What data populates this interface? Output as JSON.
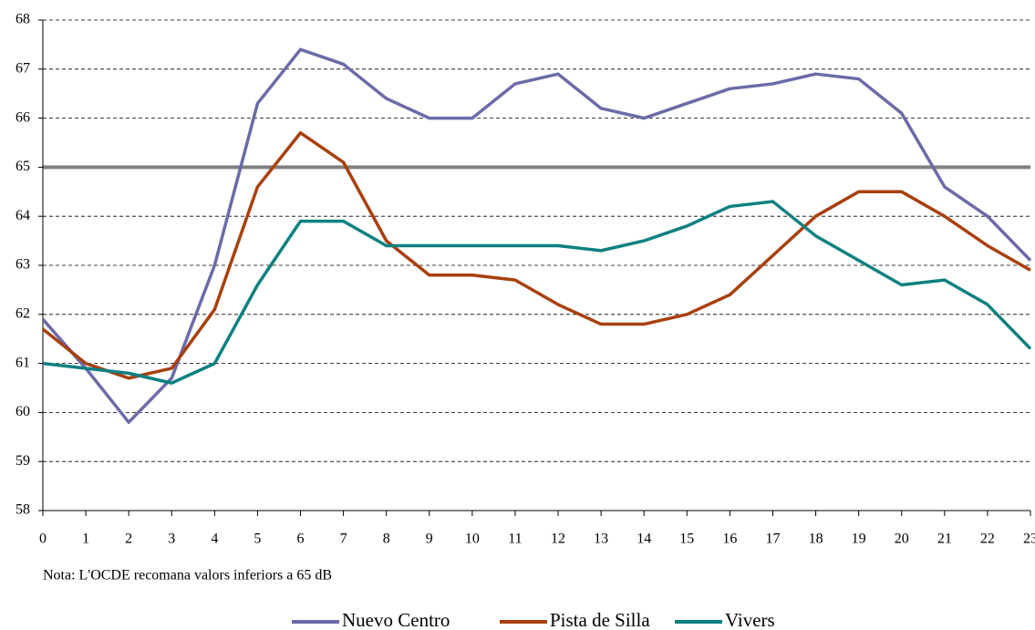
{
  "chart_data": {
    "type": "line",
    "x": [
      0,
      1,
      2,
      3,
      4,
      5,
      6,
      7,
      8,
      9,
      10,
      11,
      12,
      13,
      14,
      15,
      16,
      17,
      18,
      19,
      20,
      21,
      22,
      23
    ],
    "xlim": [
      0,
      23
    ],
    "xticks": [
      0,
      1,
      2,
      3,
      4,
      5,
      6,
      7,
      8,
      9,
      10,
      11,
      12,
      13,
      14,
      15,
      16,
      17,
      18,
      19,
      20,
      21,
      22,
      23
    ],
    "ylim": [
      58,
      68
    ],
    "yticks": [
      58,
      59,
      60,
      61,
      62,
      63,
      64,
      65,
      66,
      67,
      68
    ],
    "grid": true,
    "threshold": 65,
    "threshold_color": "#808080",
    "note": "Nota: L'OCDE recomana valors inferiors a 65 dB",
    "legend": "bottom",
    "series": [
      {
        "name": "Nuevo Centro",
        "color": "#6B6BA8",
        "values": [
          61.9,
          60.9,
          59.8,
          60.7,
          63.0,
          66.3,
          67.4,
          67.1,
          66.4,
          66.0,
          66.0,
          66.7,
          66.9,
          66.2,
          66.0,
          66.3,
          66.6,
          66.7,
          66.9,
          66.8,
          66.1,
          64.6,
          64.0,
          63.1
        ]
      },
      {
        "name": "Pista de Silla",
        "color": "#A8400E",
        "values": [
          61.7,
          61.0,
          60.7,
          60.9,
          62.1,
          64.6,
          65.7,
          65.1,
          63.5,
          62.8,
          62.8,
          62.7,
          62.2,
          61.8,
          61.8,
          62.0,
          62.4,
          63.2,
          64.0,
          64.5,
          64.5,
          64.0,
          63.4,
          62.9
        ]
      },
      {
        "name": "Vivers",
        "color": "#0E8080",
        "values": [
          61.0,
          60.9,
          60.8,
          60.6,
          61.0,
          62.6,
          63.9,
          63.9,
          63.4,
          63.4,
          63.4,
          63.4,
          63.4,
          63.3,
          63.5,
          63.8,
          64.2,
          64.3,
          63.6,
          63.1,
          62.6,
          62.7,
          62.2,
          61.3
        ]
      }
    ]
  }
}
